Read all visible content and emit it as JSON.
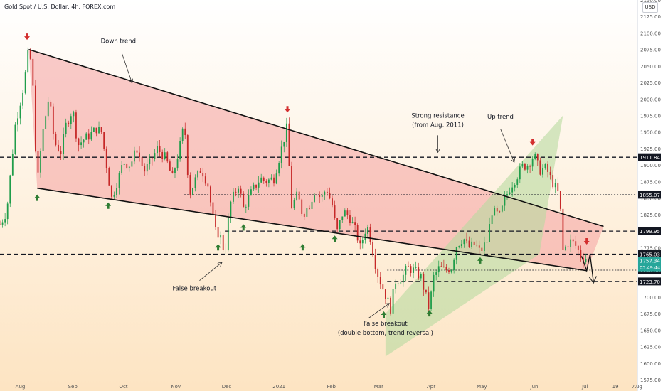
{
  "header": {
    "symbol_line": "Gold Spot / U.S. Dollar, 4h, FOREX.com",
    "currency_button": "USD"
  },
  "colors": {
    "bg_top": "#ffffff",
    "bg_bottom": "#fde4c2",
    "up_candle": "#1f9d4a",
    "down_candle": "#c62828",
    "down_channel_fill": "#f4a0a0",
    "up_channel_fill": "#b7dba0",
    "level_badge": "#131722",
    "current_price_badge": "#26a69a",
    "up_arrow": "#2e7d32",
    "down_arrow": "#d32f2f"
  },
  "chart_data": {
    "type": "candlestick",
    "title": "Gold Spot / U.S. Dollar, 4h, FOREX.com",
    "ylim": [
      1575,
      2150
    ],
    "y_ticks": [
      1575,
      1600,
      1625,
      1650,
      1675,
      1700,
      1725,
      1750,
      1775,
      1800,
      1825,
      1850,
      1875,
      1900,
      1925,
      1950,
      1975,
      2000,
      2025,
      2050,
      2075,
      2100,
      2125,
      2150
    ],
    "x_ticks": [
      "Aug",
      "Sep",
      "Oct",
      "Nov",
      "Dec",
      "2021",
      "Feb",
      "Mar",
      "Apr",
      "May",
      "Jun",
      "Jul",
      "19",
      "Aug"
    ],
    "price_path": [
      [
        "2020-07-20",
        1810
      ],
      [
        "2020-07-24",
        1830
      ],
      [
        "2020-07-29",
        1960
      ],
      [
        "2020-08-03",
        2020
      ],
      [
        "2020-08-06",
        2075
      ],
      [
        "2020-08-08",
        2045
      ],
      [
        "2020-08-11",
        1870
      ],
      [
        "2020-08-14",
        1945
      ],
      [
        "2020-08-18",
        2005
      ],
      [
        "2020-08-21",
        1935
      ],
      [
        "2020-08-25",
        1920
      ],
      [
        "2020-08-28",
        1960
      ],
      [
        "2020-09-01",
        1985
      ],
      [
        "2020-09-04",
        1930
      ],
      [
        "2020-09-08",
        1940
      ],
      [
        "2020-09-11",
        1945
      ],
      [
        "2020-09-15",
        1955
      ],
      [
        "2020-09-18",
        1950
      ],
      [
        "2020-09-21",
        1900
      ],
      [
        "2020-09-24",
        1850
      ],
      [
        "2020-09-28",
        1880
      ],
      [
        "2020-10-01",
        1905
      ],
      [
        "2020-10-05",
        1900
      ],
      [
        "2020-10-09",
        1925
      ],
      [
        "2020-10-13",
        1890
      ],
      [
        "2020-10-16",
        1900
      ],
      [
        "2020-10-21",
        1925
      ],
      [
        "2020-10-26",
        1910
      ],
      [
        "2020-10-30",
        1880
      ],
      [
        "2020-11-04",
        1935
      ],
      [
        "2020-11-06",
        1965
      ],
      [
        "2020-11-09",
        1855
      ],
      [
        "2020-11-12",
        1875
      ],
      [
        "2020-11-16",
        1895
      ],
      [
        "2020-11-20",
        1870
      ],
      [
        "2020-11-24",
        1800
      ],
      [
        "2020-11-27",
        1795
      ],
      [
        "2020-11-30",
        1765
      ],
      [
        "2020-12-03",
        1840
      ],
      [
        "2020-12-08",
        1870
      ],
      [
        "2020-12-11",
        1835
      ],
      [
        "2020-12-16",
        1860
      ],
      [
        "2020-12-21",
        1880
      ],
      [
        "2020-12-24",
        1875
      ],
      [
        "2020-12-29",
        1880
      ],
      [
        "2021-01-04",
        1940
      ],
      [
        "2021-01-06",
        1960
      ],
      [
        "2021-01-08",
        1835
      ],
      [
        "2021-01-12",
        1855
      ],
      [
        "2021-01-15",
        1825
      ],
      [
        "2021-01-19",
        1840
      ],
      [
        "2021-01-22",
        1860
      ],
      [
        "2021-01-26",
        1850
      ],
      [
        "2021-01-29",
        1865
      ],
      [
        "2021-02-02",
        1835
      ],
      [
        "2021-02-04",
        1795
      ],
      [
        "2021-02-08",
        1830
      ],
      [
        "2021-02-12",
        1820
      ],
      [
        "2021-02-16",
        1795
      ],
      [
        "2021-02-18",
        1775
      ],
      [
        "2021-02-22",
        1810
      ],
      [
        "2021-02-25",
        1780
      ],
      [
        "2021-02-26",
        1760
      ],
      [
        "2021-03-01",
        1730
      ],
      [
        "2021-03-04",
        1710
      ],
      [
        "2021-03-08",
        1683
      ],
      [
        "2021-03-11",
        1725
      ],
      [
        "2021-03-15",
        1730
      ],
      [
        "2021-03-18",
        1745
      ],
      [
        "2021-03-22",
        1740
      ],
      [
        "2021-03-26",
        1730
      ],
      [
        "2021-03-31",
        1680
      ],
      [
        "2021-04-02",
        1728
      ],
      [
        "2021-04-06",
        1745
      ],
      [
        "2021-04-09",
        1740
      ],
      [
        "2021-04-13",
        1745
      ],
      [
        "2021-04-16",
        1778
      ],
      [
        "2021-04-20",
        1790
      ],
      [
        "2021-04-23",
        1775
      ],
      [
        "2021-04-27",
        1780
      ],
      [
        "2021-04-30",
        1768
      ],
      [
        "2021-05-04",
        1785
      ],
      [
        "2021-05-07",
        1830
      ],
      [
        "2021-05-12",
        1822
      ],
      [
        "2021-05-14",
        1845
      ],
      [
        "2021-05-18",
        1868
      ],
      [
        "2021-05-21",
        1880
      ],
      [
        "2021-05-25",
        1898
      ],
      [
        "2021-05-28",
        1900
      ],
      [
        "2021-06-01",
        1915
      ],
      [
        "2021-06-04",
        1892
      ],
      [
        "2021-06-08",
        1895
      ],
      [
        "2021-06-11",
        1878
      ],
      [
        "2021-06-15",
        1858
      ],
      [
        "2021-06-17",
        1820
      ],
      [
        "2021-06-18",
        1770
      ],
      [
        "2021-06-22",
        1785
      ],
      [
        "2021-06-25",
        1780
      ],
      [
        "2021-06-29",
        1760
      ],
      [
        "2021-07-01",
        1760
      ],
      [
        "2021-07-02",
        1757
      ]
    ],
    "horizontal_levels": [
      {
        "value": 1911.84,
        "label": "1911.84",
        "style": "dashed"
      },
      {
        "value": 1855.07,
        "label": "1855.07",
        "style": "dotted",
        "from": "2020-11-06"
      },
      {
        "value": 1799.95,
        "label": "1799.95",
        "style": "dashed",
        "from": "2020-11-30"
      },
      {
        "value": 1765.03,
        "label": "1765.03",
        "style": "dashed"
      },
      {
        "value": 1740.86,
        "label": "1740.86",
        "style": "dotted",
        "from": "2021-03-06"
      },
      {
        "value": 1723.7,
        "label": "1723.70",
        "style": "dashed",
        "from": "2021-03-06"
      }
    ],
    "current_price": {
      "value": 1757.34,
      "label": "1757.34",
      "countdown": "03:49:44"
    },
    "down_channel": {
      "upper": [
        [
          "2020-08-06",
          2075
        ],
        [
          "2021-07-12",
          1807
        ]
      ],
      "lower": [
        [
          "2020-08-11",
          1865
        ],
        [
          "2021-07-02",
          1740
        ]
      ]
    },
    "up_channel": {
      "lower": [
        [
          "2021-03-05",
          1610
        ],
        [
          "2021-06-04",
          1765
        ]
      ],
      "upper": [
        [
          "2021-03-05",
          1675
        ],
        [
          "2021-06-18",
          1975
        ]
      ]
    },
    "annotations": [
      {
        "text": "Down trend",
        "x": "2020-09-28",
        "y": 2085
      },
      {
        "text": "Strong resistance",
        "x": "2021-04-05",
        "y": 1972
      },
      {
        "text": "(from Aug. 2011)",
        "x": "2021-04-05",
        "y": 1958
      },
      {
        "text": "Up trend",
        "x": "2021-05-12",
        "y": 1970
      },
      {
        "text": "False breakout",
        "x": "2020-11-12",
        "y": 1710
      },
      {
        "text": "False breakout",
        "x": "2021-03-05",
        "y": 1657
      },
      {
        "text": "(double bottom, trend reversal)",
        "x": "2021-03-05",
        "y": 1643
      }
    ],
    "up_markers": [
      [
        "2020-08-11",
        1850
      ],
      [
        "2020-09-22",
        1838
      ],
      [
        "2020-11-26",
        1775
      ],
      [
        "2020-12-11",
        1805
      ],
      [
        "2021-01-15",
        1775
      ],
      [
        "2021-02-03",
        1788
      ],
      [
        "2021-03-04",
        1673
      ],
      [
        "2021-03-31",
        1675
      ],
      [
        "2021-04-30",
        1755
      ]
    ],
    "down_markers": [
      [
        "2020-08-05",
        2095
      ],
      [
        "2021-01-06",
        1985
      ],
      [
        "2021-05-31",
        1935
      ],
      [
        "2021-07-02",
        1785
      ]
    ]
  }
}
